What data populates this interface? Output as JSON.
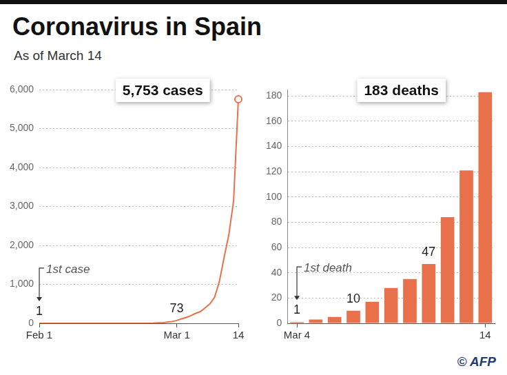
{
  "title": "Coronavirus in Spain",
  "subtitle": "As of March 14",
  "credit": "© AFP",
  "chart_data": [
    {
      "type": "line",
      "title": "5,753 cases",
      "categories": [
        "Feb 1",
        null,
        null,
        null,
        null,
        null,
        null,
        null,
        null,
        null,
        null,
        null,
        null,
        null,
        null,
        null,
        null,
        null,
        null,
        null,
        null,
        null,
        null,
        null,
        null,
        null,
        null,
        null,
        null,
        "Mar 1",
        null,
        null,
        null,
        null,
        null,
        null,
        null,
        null,
        null,
        null,
        null,
        null,
        "14"
      ],
      "values": [
        1,
        1,
        1,
        1,
        1,
        1,
        1,
        1,
        2,
        2,
        2,
        2,
        2,
        2,
        2,
        2,
        2,
        2,
        2,
        2,
        2,
        2,
        2,
        2,
        6,
        13,
        15,
        32,
        45,
        73,
        114,
        151,
        198,
        257,
        300,
        400,
        500,
        673,
        1073,
        1695,
        2277,
        3146,
        5753
      ],
      "value_labels": [
        "1",
        null,
        null,
        null,
        null,
        null,
        null,
        null,
        null,
        null,
        null,
        null,
        null,
        null,
        null,
        null,
        null,
        null,
        null,
        null,
        null,
        null,
        null,
        null,
        null,
        null,
        null,
        null,
        null,
        "73",
        null,
        null,
        null,
        null,
        null,
        null,
        null,
        null,
        null,
        null,
        null,
        null,
        null
      ],
      "color": "#e8704b",
      "ylim": [
        0,
        6000
      ],
      "yticks": [
        0,
        {
          "value": 1000,
          "label": "1,000"
        },
        {
          "value": 2000,
          "label": "2,000"
        },
        {
          "value": 3000,
          "label": "3,000"
        },
        {
          "value": 4000,
          "label": "4,000"
        },
        {
          "value": 5000,
          "label": "5,000"
        },
        {
          "value": 6000,
          "label": "6,000"
        }
      ],
      "grid": true,
      "annotations": [
        {
          "text": "1st case",
          "x": "Feb 1"
        }
      ]
    },
    {
      "type": "bar",
      "title": "183 deaths",
      "categories": [
        "Mar 4",
        null,
        null,
        null,
        null,
        null,
        null,
        null,
        null,
        null,
        "14"
      ],
      "values": [
        1,
        3,
        5,
        10,
        17,
        28,
        35,
        47,
        84,
        121,
        183
      ],
      "value_labels": [
        "1",
        null,
        null,
        "10",
        null,
        null,
        null,
        "47",
        null,
        null,
        null
      ],
      "color": "#e8704b",
      "ylim": [
        0,
        185
      ],
      "yticks": [
        0,
        20,
        40,
        60,
        80,
        100,
        120,
        140,
        160,
        180
      ],
      "grid": true,
      "annotations": [
        {
          "text": "1st death",
          "x": "Mar 4"
        }
      ]
    }
  ]
}
